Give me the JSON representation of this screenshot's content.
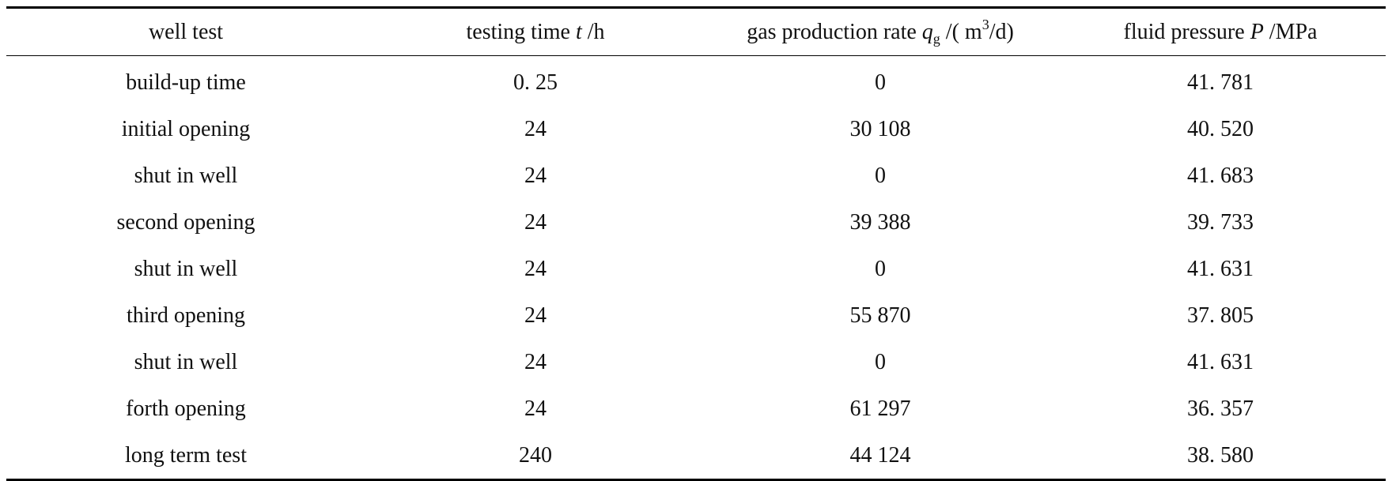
{
  "table": {
    "headers": {
      "col0": "well test",
      "col1": {
        "prefix": "testing time ",
        "symbol": "t",
        "suffix": " /h"
      },
      "col2": {
        "prefix": "gas production rate ",
        "symbol": "q",
        "sub": "g",
        "mid": " /( m",
        "sup": "3",
        "suffix": "/d)"
      },
      "col3": {
        "prefix": "fluid pressure ",
        "symbol": "P",
        "suffix": " /MPa"
      }
    },
    "rows": [
      [
        "build-up time",
        "0. 25",
        "0",
        "41. 781"
      ],
      [
        "initial opening",
        "24",
        "30 108",
        "40. 520"
      ],
      [
        "shut in well",
        "24",
        "0",
        "41. 683"
      ],
      [
        "second opening",
        "24",
        "39 388",
        "39. 733"
      ],
      [
        "shut in well",
        "24",
        "0",
        "41. 631"
      ],
      [
        "third opening",
        "24",
        "55 870",
        "37. 805"
      ],
      [
        "shut in well",
        "24",
        "0",
        "41. 631"
      ],
      [
        "forth opening",
        "24",
        "61 297",
        "36. 357"
      ],
      [
        "long term test",
        "240",
        "44 124",
        "38. 580"
      ]
    ]
  }
}
